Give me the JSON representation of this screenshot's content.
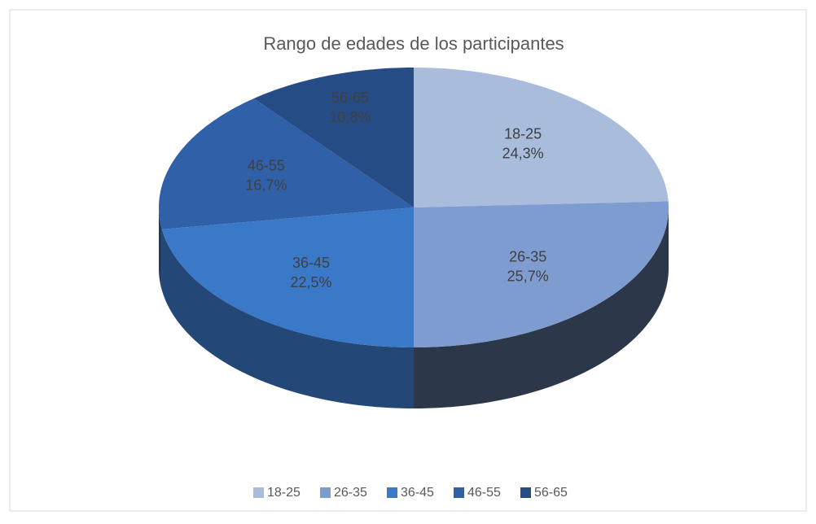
{
  "chart_data": {
    "type": "pie",
    "title": "Rango de edades de los participantes",
    "categories": [
      "18-25",
      "26-35",
      "36-45",
      "46-55",
      "56-65"
    ],
    "values": [
      24.3,
      25.7,
      22.5,
      16.7,
      10.8
    ],
    "value_labels": [
      "24,3%",
      "25,7%",
      "22,5%",
      "16,7%",
      "10,8%"
    ],
    "colors": [
      "#a9bcdc",
      "#7f9cd0",
      "#3a78c8",
      "#2f60a8",
      "#264c86"
    ],
    "legend": "bottom"
  }
}
